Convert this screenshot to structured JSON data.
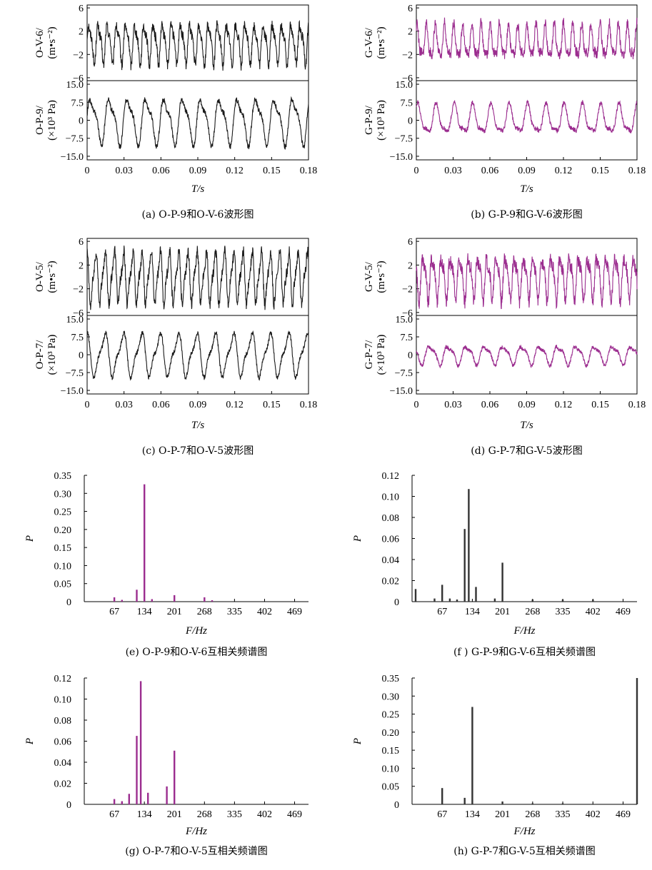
{
  "colors": {
    "black": "#1a1a1a",
    "magenta": "#9b2d8f",
    "dark": "#333333"
  },
  "panels": [
    {
      "id": "a",
      "caption": "(a) O-P-9和O-V-6波形图",
      "xlabel": "T/s",
      "xticks": [
        "0",
        "0.03",
        "0.06",
        "0.09",
        "0.12",
        "0.15",
        "0.18"
      ],
      "top": {
        "ylabel1": "O-V-6/",
        "ylabel2": "(m•s⁻²)",
        "yticks": [
          "6",
          "2",
          "−2",
          "−6"
        ],
        "ylim": [
          -6.5,
          6.5
        ]
      },
      "bottom": {
        "ylabel1": "O-P-9/",
        "ylabel2": "(×10³ Pa)",
        "yticks": [
          "15.0",
          "7.5",
          "0",
          "−7.5",
          "−15.0"
        ],
        "ylim": [
          -16.5,
          16.5
        ]
      }
    },
    {
      "id": "b",
      "caption": "(b) G-P-9和G-V-6波形图",
      "xlabel": "T/s",
      "xticks": [
        "0",
        "0.03",
        "0.06",
        "0.09",
        "0.12",
        "0.15",
        "0.18"
      ],
      "top": {
        "ylabel1": "G-V-6/",
        "ylabel2": "(m•s⁻²)",
        "yticks": [
          "6",
          "2",
          "−2",
          "−6"
        ],
        "ylim": [
          -6.5,
          6.5
        ]
      },
      "bottom": {
        "ylabel1": "G-P-9/",
        "ylabel2": "(×10³ Pa)",
        "yticks": [
          "15.0",
          "7.5",
          "0",
          "−7.5",
          "−15.0"
        ],
        "ylim": [
          -16.5,
          16.5
        ]
      }
    },
    {
      "id": "c",
      "caption": "(c) O-P-7和O-V-5波形图",
      "xlabel": "T/s",
      "xticks": [
        "0",
        "0.03",
        "0.06",
        "0.09",
        "0.12",
        "0.15",
        "0.18"
      ],
      "top": {
        "ylabel1": "O-V-5/",
        "ylabel2": "(m•s⁻²)",
        "yticks": [
          "6",
          "2",
          "−2",
          "−6"
        ],
        "ylim": [
          -6.5,
          6.5
        ]
      },
      "bottom": {
        "ylabel1": "O-P-7/",
        "ylabel2": "(×10³ Pa)",
        "yticks": [
          "15.0",
          "7.5",
          "0",
          "−7.5",
          "−15.0"
        ],
        "ylim": [
          -16.5,
          16.5
        ]
      }
    },
    {
      "id": "d",
      "caption": "(d) G-P-7和G-V-5波形图",
      "xlabel": "T/s",
      "xticks": [
        "0",
        "0.03",
        "0.06",
        "0.09",
        "0.12",
        "0.15",
        "0.18"
      ],
      "top": {
        "ylabel1": "G-V-5/",
        "ylabel2": "(m•s⁻²)",
        "yticks": [
          "6",
          "2",
          "−2",
          "−6"
        ],
        "ylim": [
          -6.5,
          6.5
        ]
      },
      "bottom": {
        "ylabel1": "G-P-7/",
        "ylabel2": "(×10³ Pa)",
        "yticks": [
          "15.0",
          "7.5",
          "0",
          "−7.5",
          "−15.0"
        ],
        "ylim": [
          -16.5,
          16.5
        ]
      }
    },
    {
      "id": "e",
      "caption": "(e) O-P-9和O-V-6互相关频谱图",
      "xlabel": "F/Hz",
      "ylabel": "P",
      "xticks": [
        "67",
        "134",
        "201",
        "268",
        "335",
        "402",
        "469"
      ],
      "yticks": [
        "0",
        "0.05",
        "0.10",
        "0.15",
        "0.20",
        "0.25",
        "0.30",
        "0.35"
      ]
    },
    {
      "id": "f",
      "caption": "(f ) G-P-9和G-V-6互相关频谱图",
      "xlabel": "F/Hz",
      "ylabel": "P",
      "xticks": [
        "67",
        "134",
        "201",
        "268",
        "335",
        "402",
        "469"
      ],
      "yticks": [
        "0",
        "0.02",
        "0.04",
        "0.06",
        "0.08",
        "0.10",
        "0.12"
      ]
    },
    {
      "id": "g",
      "caption": "(g) O-P-7和O-V-5互相关频谱图",
      "xlabel": "F/Hz",
      "ylabel": "P",
      "xticks": [
        "67",
        "134",
        "201",
        "268",
        "335",
        "402",
        "469"
      ],
      "yticks": [
        "0",
        "0.02",
        "0.04",
        "0.06",
        "0.08",
        "0.10",
        "0.12"
      ]
    },
    {
      "id": "h",
      "caption": "(h) G-P-7和G-V-5互相关频谱图",
      "xlabel": "F/Hz",
      "ylabel": "P",
      "xticks": [
        "67",
        "134",
        "201",
        "268",
        "335",
        "402",
        "469"
      ],
      "yticks": [
        "0",
        "0.05",
        "0.10",
        "0.15",
        "0.20",
        "0.25",
        "0.30",
        "0.35"
      ]
    }
  ],
  "chart_data": [
    {
      "panel": "a",
      "type": "line",
      "xlim": [
        0,
        0.18
      ],
      "color": "black",
      "series": [
        {
          "axis": "top",
          "freq_hz": 134,
          "amplitude": 3.0,
          "noise": 0.9,
          "ylim": [
            -6.5,
            6.5
          ]
        },
        {
          "axis": "bottom",
          "freq_hz": 67,
          "amplitude": 8.5,
          "noise": 1.2,
          "ylim": [
            -16.5,
            16.5
          ]
        }
      ]
    },
    {
      "panel": "b",
      "type": "line",
      "xlim": [
        0,
        0.18
      ],
      "color": "magenta",
      "series": [
        {
          "axis": "top",
          "freq_hz": 134,
          "amplitude": 2.6,
          "noise": 0.9,
          "ylim": [
            -6.5,
            6.5
          ]
        },
        {
          "axis": "bottom",
          "freq_hz": 67,
          "amplitude": 5.5,
          "noise": 1.0,
          "ylim": [
            -16.5,
            16.5
          ]
        }
      ]
    },
    {
      "panel": "c",
      "type": "line",
      "xlim": [
        0,
        0.18
      ],
      "color": "black",
      "series": [
        {
          "axis": "top",
          "freq_hz": 134,
          "amplitude": 3.8,
          "noise": 1.0,
          "ylim": [
            -6.5,
            6.5
          ]
        },
        {
          "axis": "bottom",
          "freq_hz": 67,
          "amplitude": 8.0,
          "noise": 1.0,
          "ylim": [
            -16.5,
            16.5
          ]
        }
      ]
    },
    {
      "panel": "d",
      "type": "line",
      "xlim": [
        0,
        0.18
      ],
      "color": "magenta",
      "series": [
        {
          "axis": "top",
          "freq_hz": 134,
          "amplitude": 3.2,
          "noise": 1.2,
          "ylim": [
            -6.5,
            6.5
          ]
        },
        {
          "axis": "bottom",
          "freq_hz": 67,
          "amplitude": 3.5,
          "noise": 0.8,
          "ylim": [
            -16.5,
            16.5
          ]
        }
      ]
    },
    {
      "panel": "e",
      "type": "bar",
      "xlim": [
        0,
        500
      ],
      "ylim": [
        0,
        0.35
      ],
      "color": "magenta",
      "x": [
        67,
        84,
        117,
        134,
        151,
        201,
        268,
        285
      ],
      "values": [
        0.012,
        0.005,
        0.033,
        0.325,
        0.007,
        0.018,
        0.012,
        0.004
      ]
    },
    {
      "panel": "f",
      "type": "bar",
      "xlim": [
        0,
        500
      ],
      "ylim": [
        0,
        0.12
      ],
      "color": "dark",
      "x": [
        8,
        50,
        67,
        84,
        100,
        117,
        126,
        142,
        184,
        201,
        268,
        335,
        402
      ],
      "values": [
        0.012,
        0.003,
        0.016,
        0.003,
        0.002,
        0.069,
        0.107,
        0.014,
        0.003,
        0.037,
        0.002,
        0.002,
        0.002
      ]
    },
    {
      "panel": "g",
      "type": "bar",
      "xlim": [
        0,
        500
      ],
      "ylim": [
        0,
        0.12
      ],
      "color": "magenta",
      "x": [
        67,
        84,
        100,
        117,
        126,
        142,
        184,
        201
      ],
      "values": [
        0.005,
        0.003,
        0.01,
        0.065,
        0.117,
        0.011,
        0.017,
        0.051
      ]
    },
    {
      "panel": "h",
      "type": "bar",
      "xlim": [
        0,
        500
      ],
      "ylim": [
        0,
        0.35
      ],
      "color": "dark",
      "x": [
        67,
        117,
        134,
        201,
        268,
        335,
        500
      ],
      "values": [
        0.045,
        0.018,
        0.27,
        0.008,
        0.003,
        0.003,
        0.35
      ]
    }
  ]
}
